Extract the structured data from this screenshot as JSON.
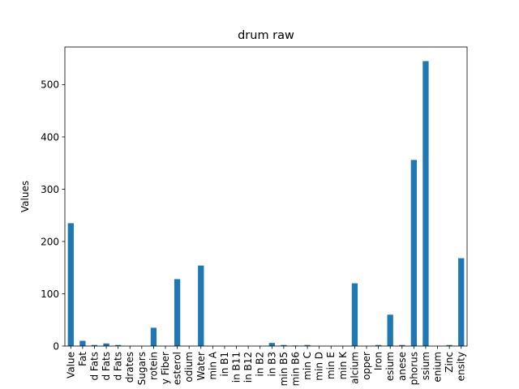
{
  "chart_data": {
    "type": "bar",
    "title": "drum raw",
    "xlabel": "",
    "ylabel": "Values",
    "ylim": [
      0,
      572
    ],
    "yticks": [
      0,
      100,
      200,
      300,
      400,
      500
    ],
    "grid": false,
    "legend": "none",
    "bar_color": "#1f77b4",
    "categories": [
      "Value",
      "Fat",
      "d Fats",
      "d Fats",
      "d Fats",
      "drates",
      "Sugars",
      "rotein",
      "y Fiber",
      "esterol",
      "odium",
      "Water",
      "min A",
      "in B1",
      "in B11",
      "in B12",
      "in B2",
      "in B3",
      "min B5",
      "min B6",
      "min C",
      "min D",
      "min E",
      "min K",
      "alcium",
      "opper",
      "Iron",
      "esium",
      "anese",
      "phorus",
      "ssium",
      "enium",
      "Zinc",
      "ensity"
    ],
    "values": [
      235,
      10,
      2,
      5,
      2,
      0,
      0,
      35,
      0,
      128,
      0,
      154,
      0,
      0,
      0,
      0,
      0,
      6,
      2,
      1,
      2,
      0,
      0,
      0,
      120,
      0,
      2,
      60,
      2,
      356,
      545,
      0,
      2,
      168
    ]
  }
}
